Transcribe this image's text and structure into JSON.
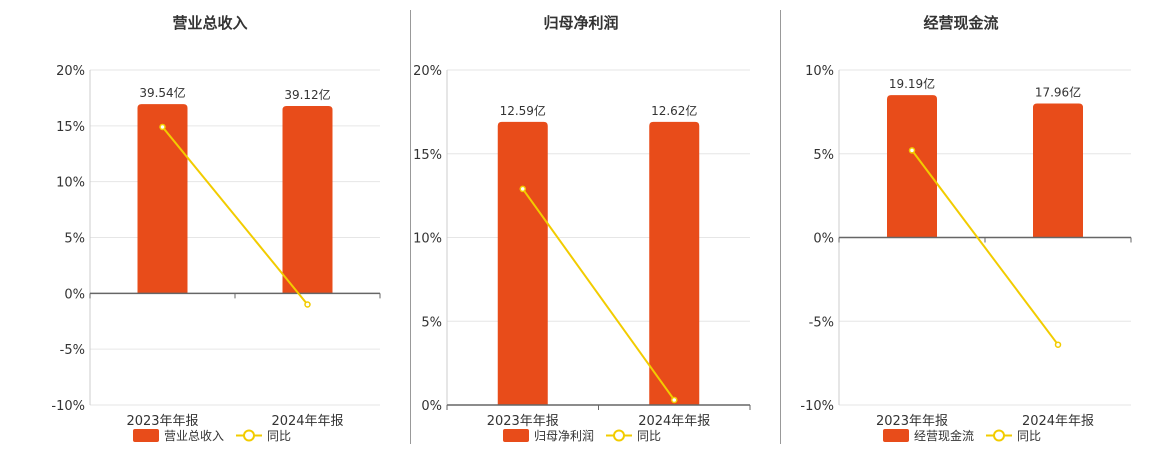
{
  "colors": {
    "bar": "#E84C1A",
    "line": "#F2CC00",
    "grid": "#E6E6E6",
    "axis": "#666666"
  },
  "chart_data": [
    {
      "type": "bar",
      "title": "营业总收入",
      "categories": [
        "2023年年报",
        "2024年年报"
      ],
      "bar_values": [
        16.94,
        16.78
      ],
      "bar_labels": [
        "39.54亿",
        "39.12亿"
      ],
      "line_values": [
        14.9,
        -1.0
      ],
      "yticks": [
        "20%",
        "15%",
        "10%",
        "5%",
        "0%",
        "-5%",
        "-10%"
      ],
      "ylim": [
        -10,
        20
      ],
      "legend": [
        "营业总收入",
        "同比"
      ]
    },
    {
      "type": "bar",
      "title": "归母净利润",
      "categories": [
        "2023年年报",
        "2024年年报"
      ],
      "bar_values": [
        16.9,
        16.9
      ],
      "bar_labels": [
        "12.59亿",
        "12.62亿"
      ],
      "line_values": [
        12.9,
        0.3
      ],
      "yticks": [
        "20%",
        "15%",
        "10%",
        "5%",
        "0%"
      ],
      "ylim": [
        0,
        20
      ],
      "legend": [
        "归母净利润",
        "同比"
      ]
    },
    {
      "type": "bar",
      "title": "经营现金流",
      "categories": [
        "2023年年报",
        "2024年年报"
      ],
      "bar_values": [
        8.5,
        8.0
      ],
      "bar_labels": [
        "19.19亿",
        "17.96亿"
      ],
      "line_values": [
        5.2,
        -6.4
      ],
      "yticks": [
        "10%",
        "5%",
        "0%",
        "-5%",
        "-10%"
      ],
      "ylim": [
        -10,
        10
      ],
      "legend": [
        "经营现金流",
        "同比"
      ]
    }
  ]
}
